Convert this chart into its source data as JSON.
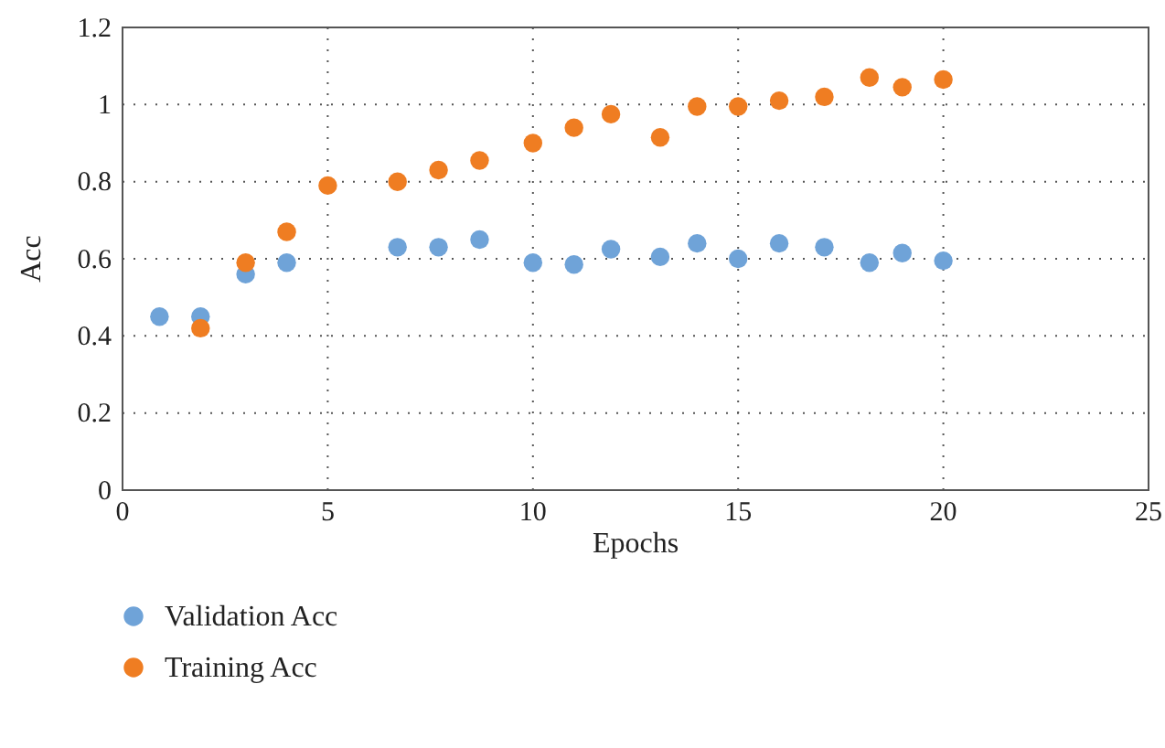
{
  "chart_data": {
    "type": "scatter",
    "xlabel": "Epochs",
    "ylabel": "Acc",
    "xlim": [
      0,
      25
    ],
    "xticks": [
      0,
      5,
      10,
      15,
      20,
      25
    ],
    "ylim": [
      0,
      1.2
    ],
    "yticks": [
      0,
      0.2,
      0.4,
      0.6,
      0.8,
      1,
      1.2
    ],
    "grid": true,
    "legend": "bottom",
    "marker": "circle",
    "series": [
      {
        "name": "Validation Acc",
        "color": "#6fa3d8",
        "x": [
          0.9,
          1.9,
          3.0,
          4.0,
          6.7,
          7.7,
          8.7,
          10.0,
          11.0,
          11.9,
          13.1,
          14.0,
          15.0,
          16.0,
          17.1,
          18.2,
          19.0,
          20.0
        ],
        "values": [
          0.45,
          0.45,
          0.56,
          0.59,
          0.63,
          0.63,
          0.65,
          0.59,
          0.585,
          0.625,
          0.605,
          0.64,
          0.6,
          0.64,
          0.63,
          0.59,
          0.615,
          0.595
        ]
      },
      {
        "name": "Training Acc",
        "color": "#ef7d22",
        "x": [
          1.9,
          3.0,
          4.0,
          5.0,
          6.7,
          7.7,
          8.7,
          10.0,
          11.0,
          11.9,
          13.1,
          14.0,
          15.0,
          16.0,
          17.1,
          18.2,
          19.0,
          20.0
        ],
        "values": [
          0.42,
          0.59,
          0.67,
          0.79,
          0.8,
          0.83,
          0.855,
          0.9,
          0.94,
          0.975,
          0.915,
          0.995,
          0.995,
          1.01,
          1.02,
          1.07,
          1.045,
          1.065
        ]
      }
    ]
  }
}
